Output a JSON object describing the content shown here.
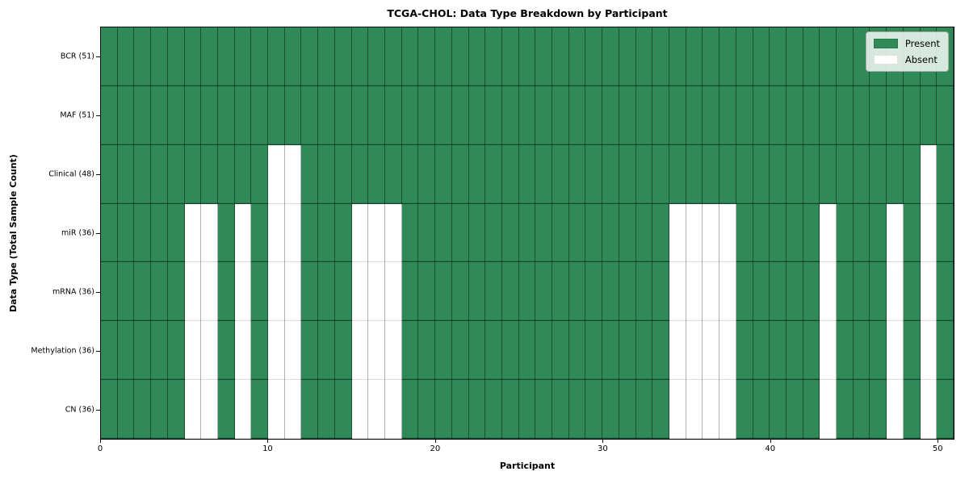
{
  "chart_data": {
    "type": "heatmap",
    "title": "TCGA-CHOL: Data Type Breakdown by Participant",
    "xlabel": "Participant",
    "ylabel": "Data Type (Total Sample Count)",
    "n_participants": 51,
    "x_range": [
      0,
      51
    ],
    "x_ticks": [
      0,
      10,
      20,
      30,
      40,
      50
    ],
    "grid": true,
    "legend_position": "upper right",
    "colors": {
      "present": "#2f8a58",
      "absent": "#ffffff"
    },
    "legend": [
      {
        "label": "Present",
        "color": "#2f8a58"
      },
      {
        "label": "Absent",
        "color": "#ffffff"
      }
    ],
    "rows": [
      {
        "label": "BCR (51)",
        "data_type": "BCR",
        "present_count": 51,
        "absent_participants": []
      },
      {
        "label": "MAF (51)",
        "data_type": "MAF",
        "present_count": 51,
        "absent_participants": []
      },
      {
        "label": "Clinical (48)",
        "data_type": "Clinical",
        "present_count": 48,
        "absent_participants": [
          10,
          11,
          49
        ]
      },
      {
        "label": "miR (36)",
        "data_type": "miR",
        "present_count": 36,
        "absent_participants": [
          5,
          6,
          8,
          10,
          11,
          15,
          16,
          17,
          34,
          35,
          36,
          37,
          43,
          47,
          49
        ]
      },
      {
        "label": "mRNA (36)",
        "data_type": "mRNA",
        "present_count": 36,
        "absent_participants": [
          5,
          6,
          8,
          10,
          11,
          15,
          16,
          17,
          34,
          35,
          36,
          37,
          43,
          47,
          49
        ]
      },
      {
        "label": "Methylation (36)",
        "data_type": "Methylation",
        "present_count": 36,
        "absent_participants": [
          5,
          6,
          8,
          10,
          11,
          15,
          16,
          17,
          34,
          35,
          36,
          37,
          43,
          47,
          49
        ]
      },
      {
        "label": "CN (36)",
        "data_type": "CN",
        "present_count": 36,
        "absent_participants": [
          5,
          6,
          8,
          10,
          11,
          15,
          16,
          17,
          34,
          35,
          36,
          37,
          43,
          47,
          49
        ]
      }
    ]
  }
}
